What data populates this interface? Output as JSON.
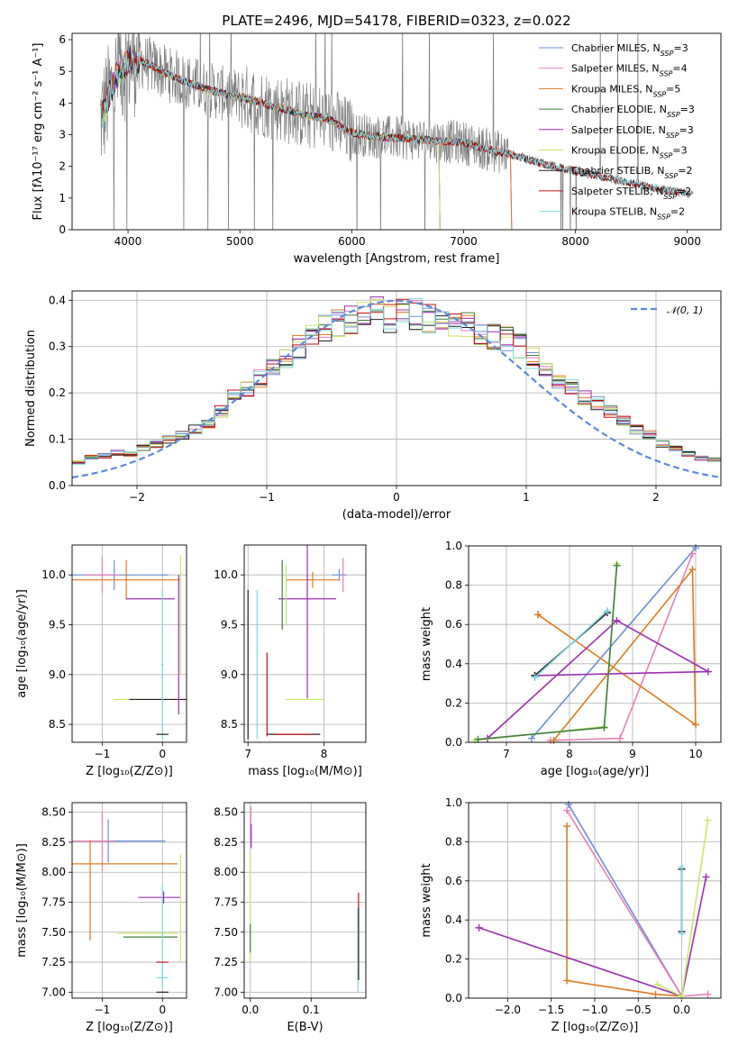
{
  "title": "PLATE=2496, MJD=54178, FIBERID=0323, z=0.022",
  "colors": {
    "Chabrier MILES": "#6a8fd8",
    "Salpeter MILES": "#e77fb6",
    "Kroupa MILES": "#e07a1f",
    "Chabrier ELODIE": "#3f7f3f",
    "Salpeter ELODIE": "#9b2fb0",
    "Kroupa ELODIE": "#c7e86a",
    "Chabrier STELIB": "#202020",
    "Salpeter STELIB": "#c01010",
    "Kroupa STELIB": "#7fd8e0",
    "data": "#808080",
    "normal": "#5b8ad8"
  },
  "chart_data": [
    {
      "id": "spectrum",
      "type": "line",
      "title": "PLATE=2496, MJD=54178, FIBERID=0323, z=0.022",
      "xlabel": "wavelength [Angstrom, rest frame]",
      "ylabel": "Flux [fλ10⁻¹⁷ erg cm⁻² s⁻¹ A⁻¹]",
      "xlim": [
        3500,
        9300
      ],
      "ylim": [
        0,
        6.2
      ],
      "xticks": [
        "4000",
        "5000",
        "6000",
        "7000",
        "8000",
        "9000"
      ],
      "yticks": [
        "0",
        "1",
        "2",
        "3",
        "4",
        "5",
        "6"
      ],
      "legend_position": "right",
      "continuum_x": [
        3750,
        3900,
        4000,
        4100,
        4200,
        4300,
        4500,
        4700,
        4900,
        5000,
        5200,
        5400,
        5600,
        5800,
        5900,
        6000,
        6200,
        6400,
        6600,
        6800,
        7000,
        7200,
        7400,
        7600,
        7800,
        8000,
        8200,
        8400,
        8600,
        8800,
        9000
      ],
      "continuum_y": [
        3.4,
        4.9,
        5.3,
        5.35,
        5.2,
        5.0,
        4.7,
        4.45,
        4.25,
        4.2,
        4.0,
        3.8,
        3.6,
        3.5,
        3.25,
        3.05,
        2.95,
        2.9,
        2.85,
        2.8,
        2.75,
        2.55,
        2.4,
        2.2,
        2.0,
        1.85,
        1.7,
        1.55,
        1.4,
        1.25,
        1.15
      ],
      "legend": [
        {
          "name": "Chabrier MILES",
          "label": "Chabrier MILES, N",
          "nssp": "3"
        },
        {
          "name": "Salpeter MILES",
          "label": "Salpeter MILES, N",
          "nssp": "4"
        },
        {
          "name": "Kroupa MILES",
          "label": "Kroupa MILES, N",
          "nssp": "5"
        },
        {
          "name": "Chabrier ELODIE",
          "label": "Chabrier ELODIE, N",
          "nssp": "3"
        },
        {
          "name": "Salpeter ELODIE",
          "label": "Salpeter ELODIE, N",
          "nssp": "3"
        },
        {
          "name": "Kroupa ELODIE",
          "label": "Kroupa ELODIE, N",
          "nssp": "3"
        },
        {
          "name": "Chabrier STELIB",
          "label": "Chabrier STELIB, N",
          "nssp": "2"
        },
        {
          "name": "Salpeter STELIB",
          "label": "Salpeter STELIB, N",
          "nssp": "2"
        },
        {
          "name": "Kroupa STELIB",
          "label": "Kroupa STELIB, N",
          "nssp": "2"
        }
      ],
      "legend_subscript": "SSP"
    },
    {
      "id": "residuals",
      "type": "line",
      "xlabel": "(data-model)/error",
      "ylabel": "Normed distribution",
      "xlim": [
        -2.5,
        2.5
      ],
      "ylim": [
        0,
        0.42
      ],
      "xticks": [
        "−2",
        "−1",
        "0",
        "1",
        "2"
      ],
      "yticks": [
        "0.0",
        "0.1",
        "0.2",
        "0.3",
        "0.4"
      ],
      "grid": true,
      "legend_position": "top-right",
      "normal_label": "𝒩(0, 1)",
      "bins_x": [
        -2.5,
        -2.4,
        -2.3,
        -2.2,
        -2.1,
        -2.0,
        -1.9,
        -1.8,
        -1.7,
        -1.6,
        -1.5,
        -1.4,
        -1.3,
        -1.2,
        -1.1,
        -1.0,
        -0.9,
        -0.8,
        -0.7,
        -0.6,
        -0.5,
        -0.4,
        -0.3,
        -0.2,
        -0.1,
        0.0,
        0.1,
        0.2,
        0.3,
        0.4,
        0.5,
        0.6,
        0.7,
        0.8,
        0.9,
        1.0,
        1.1,
        1.2,
        1.3,
        1.4,
        1.5,
        1.6,
        1.7,
        1.8,
        1.9,
        2.0,
        2.1,
        2.2,
        2.3,
        2.4
      ],
      "base_values": [
        0.05,
        0.06,
        0.065,
        0.07,
        0.068,
        0.08,
        0.09,
        0.1,
        0.11,
        0.12,
        0.135,
        0.16,
        0.19,
        0.21,
        0.23,
        0.25,
        0.27,
        0.3,
        0.32,
        0.34,
        0.35,
        0.36,
        0.37,
        0.38,
        0.36,
        0.375,
        0.37,
        0.36,
        0.35,
        0.34,
        0.345,
        0.33,
        0.32,
        0.32,
        0.3,
        0.275,
        0.25,
        0.23,
        0.21,
        0.19,
        0.18,
        0.16,
        0.14,
        0.12,
        0.11,
        0.09,
        0.08,
        0.07,
        0.06,
        0.055
      ]
    },
    {
      "id": "age-vs-z",
      "type": "scatter",
      "xlabel": "Z [log₁₀(Z/Z⊙)]",
      "ylabel": "age  [log₁₀(age/yr)]",
      "xlim": [
        -1.5,
        0.4
      ],
      "ylim": [
        8.32,
        10.3
      ],
      "xticks": [
        "−1",
        "0"
      ],
      "yticks": [
        "8.5",
        "9.0",
        "9.5",
        "10.0"
      ],
      "grid": true
    },
    {
      "id": "age-vs-mass",
      "type": "scatter",
      "xlabel": "mass [log₁₀(M/M⊙)]",
      "xlim": [
        6.95,
        8.55
      ],
      "ylim": [
        8.32,
        10.3
      ],
      "xticks": [
        "7",
        "8"
      ],
      "yticks": [
        "8.5",
        "9.0",
        "9.5",
        "10.0"
      ],
      "grid": true
    },
    {
      "id": "weight-vs-age",
      "type": "line",
      "xlabel": "age  [log₁₀(age/yr)]",
      "ylabel": "mass weight",
      "xlim": [
        6.4,
        10.4
      ],
      "ylim": [
        0,
        1.0
      ],
      "xticks": [
        "7",
        "8",
        "9",
        "10"
      ],
      "yticks": [
        "0.0",
        "0.2",
        "0.4",
        "0.6",
        "0.8",
        "1.0"
      ],
      "grid": true,
      "series": [
        {
          "key": "Chabrier MILES",
          "x": [
            7.4,
            10.0
          ],
          "y": [
            0.02,
            0.99
          ]
        },
        {
          "key": "Salpeter MILES",
          "x": [
            7.7,
            8.8,
            9.95
          ],
          "y": [
            0.01,
            0.02,
            0.96
          ]
        },
        {
          "key": "Kroupa MILES",
          "x": [
            7.75,
            9.95,
            10.0,
            7.5,
            7.5
          ],
          "y": [
            0.01,
            0.88,
            0.09,
            0.65,
            0.65
          ]
        },
        {
          "key": "Salpeter ELODIE",
          "x": [
            6.7,
            8.75,
            10.2,
            7.45
          ],
          "y": [
            0.02,
            0.62,
            0.36,
            0.34
          ]
        },
        {
          "key": "Kroupa ELODIE",
          "x": [
            6.5,
            8.55,
            8.75
          ],
          "y": [
            0.01,
            0.08,
            0.91
          ]
        },
        {
          "key": "Chabrier STELIB",
          "x": [
            7.45,
            8.6
          ],
          "y": [
            0.34,
            0.66
          ]
        },
        {
          "key": "Kroupa STELIB",
          "x": [
            7.45,
            8.6
          ],
          "y": [
            0.33,
            0.67
          ]
        },
        {
          "key": "Chabrier ELODIE",
          "x": [
            6.55,
            8.55,
            8.75
          ],
          "y": [
            0.015,
            0.075,
            0.9
          ]
        }
      ]
    },
    {
      "id": "mass-vs-z",
      "type": "scatter",
      "xlabel": "Z [log₁₀(Z/Z⊙)]",
      "ylabel": "mass [log₁₀(M/M⊙)]",
      "xlim": [
        -1.5,
        0.4
      ],
      "ylim": [
        6.95,
        8.58
      ],
      "xticks": [
        "−1",
        "0"
      ],
      "yticks": [
        "7.00",
        "7.25",
        "7.50",
        "7.75",
        "8.00",
        "8.25",
        "8.50"
      ],
      "grid": true
    },
    {
      "id": "mass-vs-ebv",
      "type": "scatter",
      "xlabel": "E(B-V)",
      "xlim": [
        -0.01,
        0.19
      ],
      "ylim": [
        6.95,
        8.58
      ],
      "xticks": [
        "0.0",
        "0.1"
      ],
      "yticks": [
        "7.00",
        "7.25",
        "7.50",
        "7.75",
        "8.00",
        "8.25",
        "8.50"
      ],
      "grid": true
    },
    {
      "id": "weight-vs-z",
      "type": "line",
      "xlabel": "Z [log₁₀(Z/Z⊙)]",
      "ylabel": "mass weight",
      "xlim": [
        -2.45,
        0.45
      ],
      "ylim": [
        0,
        1.0
      ],
      "xticks": [
        "−2.0",
        "−1.5",
        "−1.0",
        "−0.5",
        "0.0"
      ],
      "yticks": [
        "0.0",
        "0.2",
        "0.4",
        "0.6",
        "0.8",
        "1.0"
      ],
      "grid": true,
      "series": [
        {
          "key": "Chabrier MILES",
          "x": [
            -1.3,
            0.0
          ],
          "y": [
            0.99,
            0.01
          ]
        },
        {
          "key": "Salpeter MILES",
          "x": [
            -1.32,
            0.0,
            0.3
          ],
          "y": [
            0.96,
            0.01,
            0.02
          ]
        },
        {
          "key": "Kroupa MILES",
          "x": [
            -1.32,
            -1.32,
            -0.3,
            0.0
          ],
          "y": [
            0.88,
            0.09,
            0.02,
            0.01
          ]
        },
        {
          "key": "Salpeter ELODIE",
          "x": [
            -2.33,
            0.0,
            0.28
          ],
          "y": [
            0.36,
            0.01,
            0.62
          ]
        },
        {
          "key": "Kroupa ELODIE",
          "x": [
            -0.28,
            0.0,
            0.3
          ],
          "y": [
            0.07,
            0.01,
            0.91
          ]
        },
        {
          "key": "Chabrier STELIB",
          "x": [
            0.0,
            0.0
          ],
          "y": [
            0.34,
            0.66
          ]
        },
        {
          "key": "Kroupa STELIB",
          "x": [
            0.0,
            0.0
          ],
          "y": [
            0.33,
            0.67
          ]
        }
      ]
    }
  ]
}
